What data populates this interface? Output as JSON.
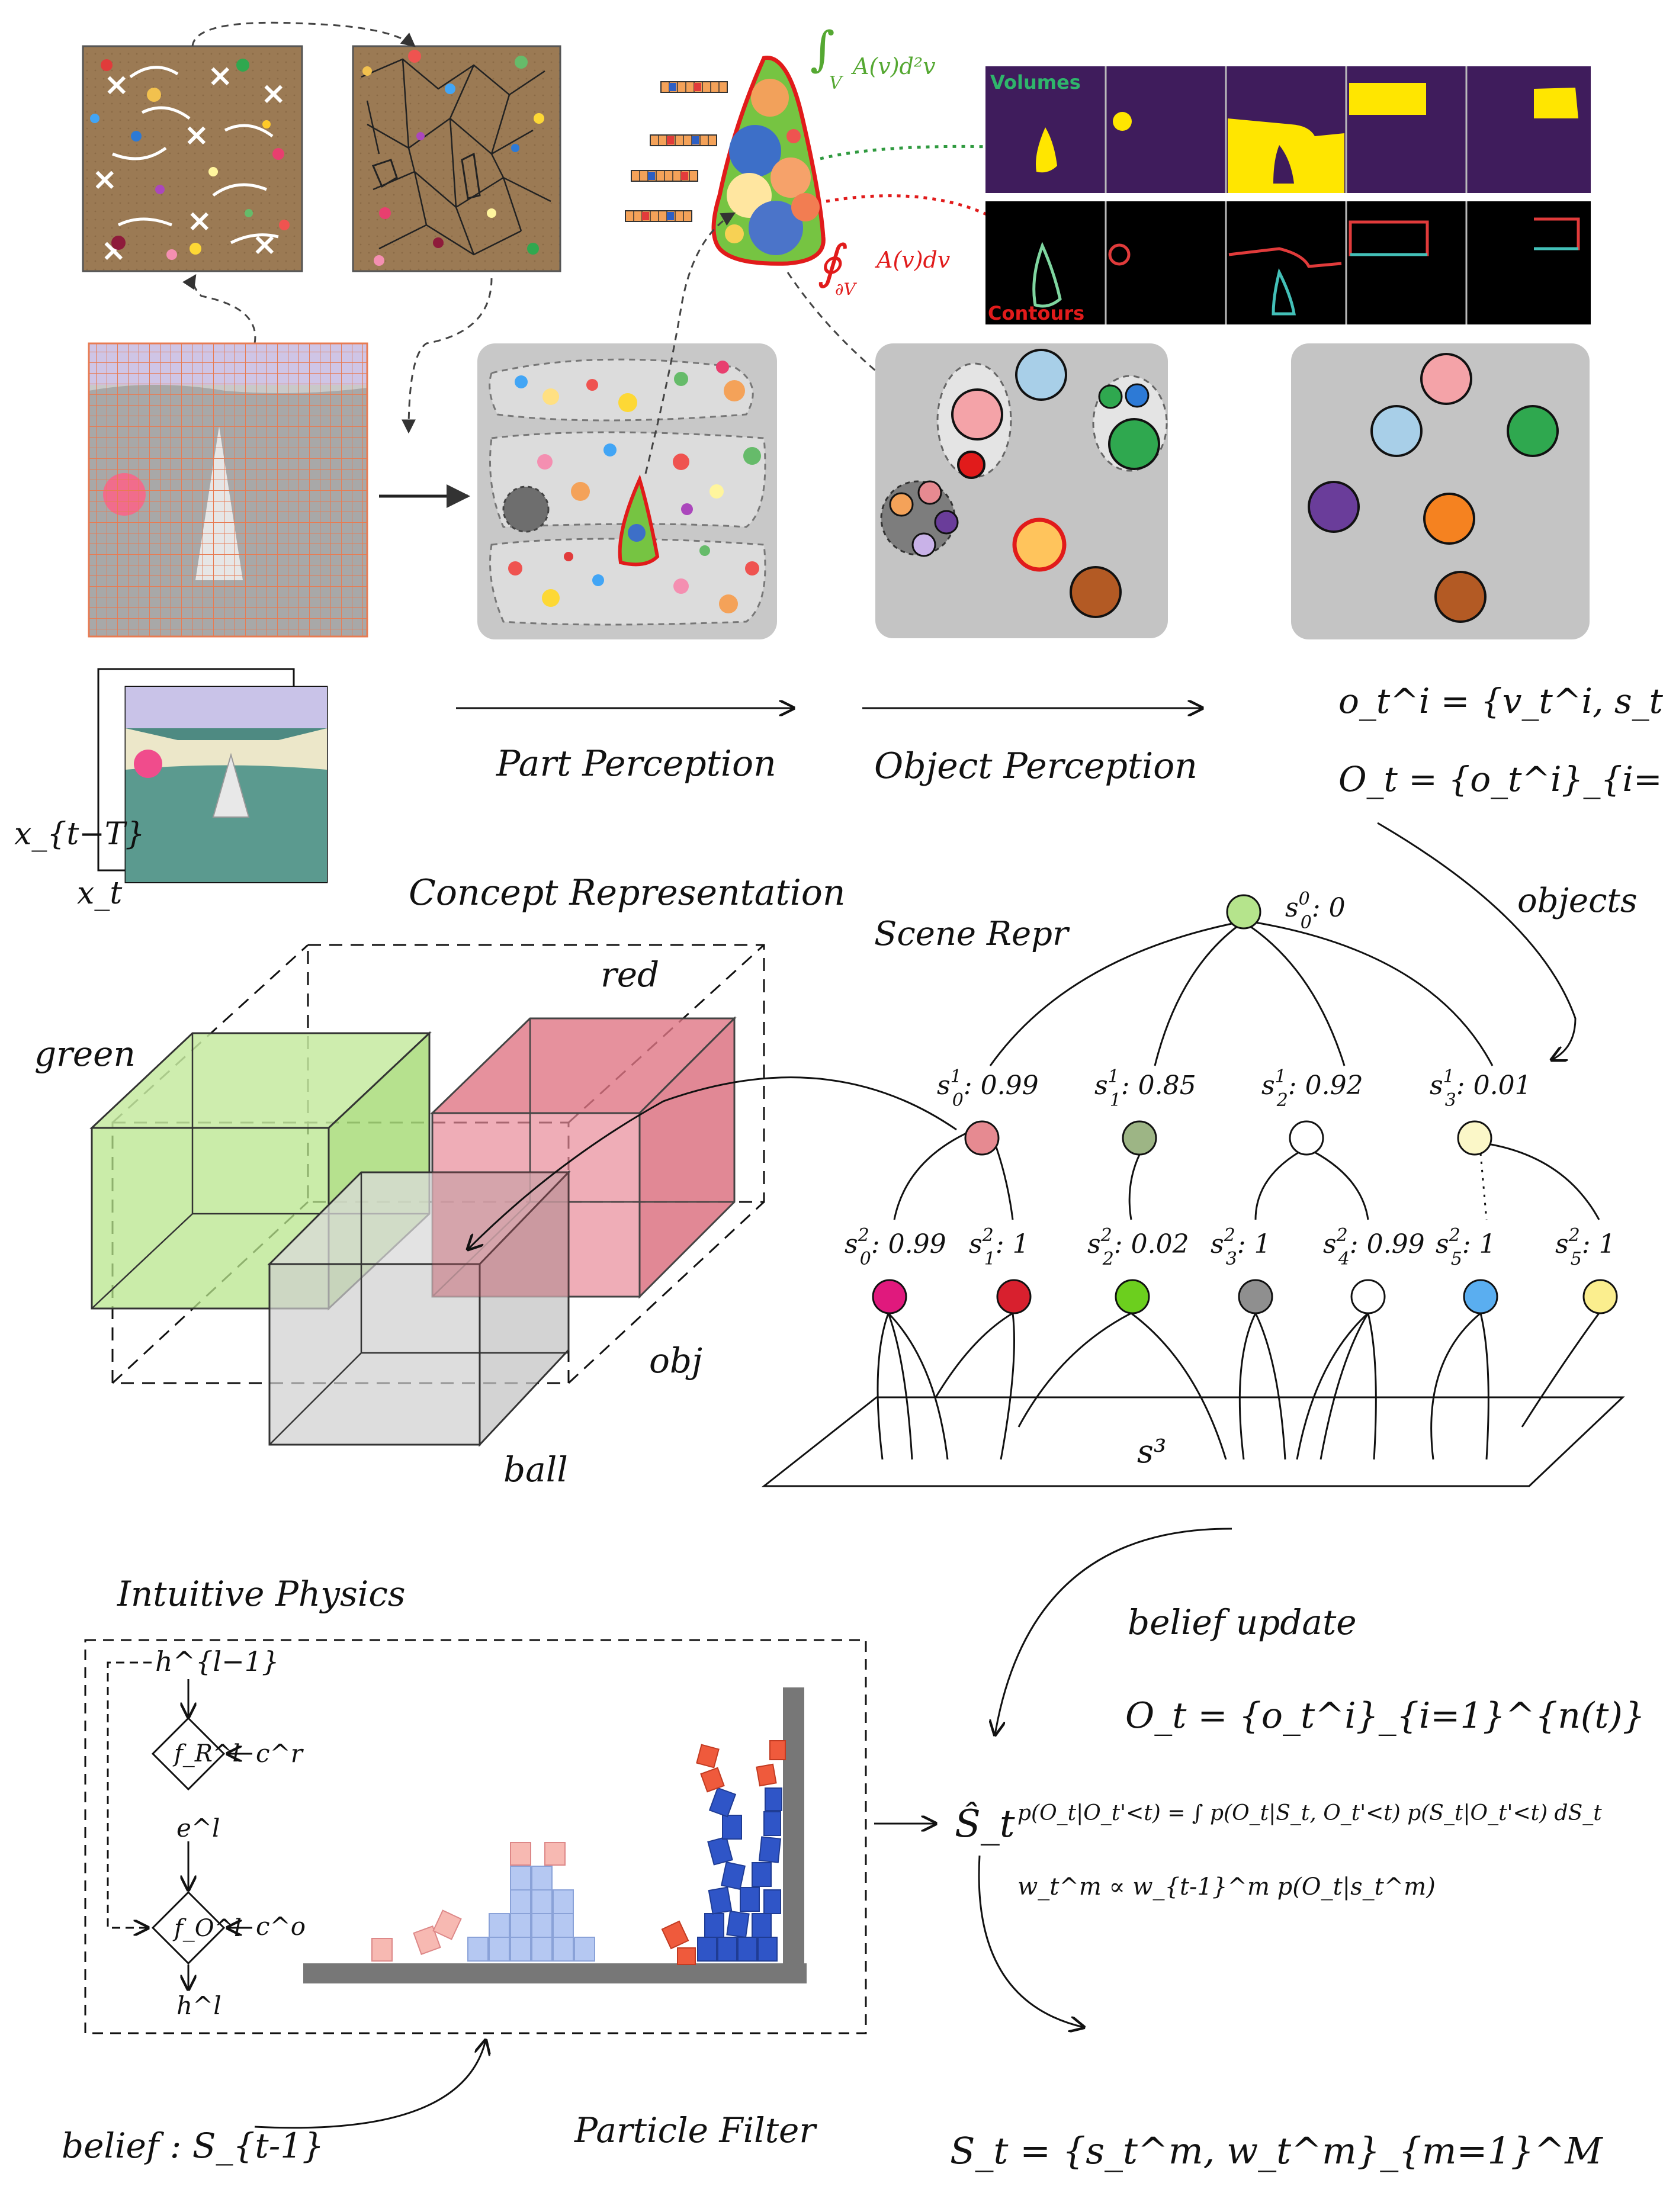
{
  "labels": {
    "part_perception": "Part Perception",
    "object_perception": "Object Perception",
    "concept_representation": "Concept Representation",
    "scene_repr": "Scene Repr",
    "objects": "objects",
    "intuitive_physics": "Intuitive Physics",
    "belief_update": "belief update",
    "particle_filter": "Particle Filter",
    "volumes": "Volumes",
    "contours": "Contours"
  },
  "equations": {
    "volume_integral": "∫V A(v)d²v",
    "contour_integral": "∮∂V A(v)dv",
    "object_def": "o_t^i = {v_t^i, s_t^i}",
    "objects_set": "O_t = {o_t^i}_{i=1}^{n(t)}",
    "likelihood": "p(O_t|O_t'<t) = ∫ p(O_t|S_t, O_t'<t) p(S_t|O_t'<t) dS_t",
    "weight_update": "w_t^m ∝ w_{t-1}^m p(O_t|s_t^m)",
    "state_set": "S_t = {s_t^m, w_t^m}_{m=1}^M",
    "belief": "belief : S_{t-1}",
    "s_hat": "Ŝ_t",
    "frames_start": "x_{t−T}",
    "frames_end": "x_t",
    "s3": "s³"
  },
  "concepts": {
    "green": "green",
    "red": "red",
    "obj": "obj",
    "ball": "ball"
  },
  "tree": {
    "root": {
      "label": "s",
      "sup": "0",
      "sub": "0",
      "value": ": 0",
      "color": "#b5e48c"
    },
    "level1": [
      {
        "sup": "1",
        "sub": "0",
        "value": ": 0.99",
        "color": "#e68a91"
      },
      {
        "sup": "1",
        "sub": "1",
        "value": ": 0.85",
        "color": "#9db585"
      },
      {
        "sup": "1",
        "sub": "2",
        "value": ": 0.92",
        "color": "#ffffff"
      },
      {
        "sup": "1",
        "sub": "3",
        "value": ": 0.01",
        "color": "#fbf7c8"
      }
    ],
    "level2": [
      {
        "sup": "2",
        "sub": "0",
        "value": ": 0.99",
        "color": "#e0197d"
      },
      {
        "sup": "2",
        "sub": "1",
        "value": ": 1",
        "color": "#d8202e"
      },
      {
        "sup": "2",
        "sub": "2",
        "value": ": 0.02",
        "color": "#6ccf1e"
      },
      {
        "sup": "2",
        "sub": "3",
        "value": ": 1",
        "color": "#8f8f8f"
      },
      {
        "sup": "2",
        "sub": "4",
        "value": ": 0.99",
        "color": "#ffffff"
      },
      {
        "sup": "2",
        "sub": "5",
        "value": ": 1",
        "color": "#5aaef0"
      },
      {
        "sup": "2",
        "sub": "5",
        "value": ": 1",
        "color": "#fbee8e"
      }
    ]
  },
  "physics_net": {
    "h_prev": "h^{l−1}",
    "f_r": "f_R^l",
    "c_r": "c^r",
    "e": "e^l",
    "f_o": "f_O^l",
    "c_o": "c^o",
    "h": "h^l"
  },
  "colors": {
    "brown_panel": "#9b7a54",
    "gray_panel": "#c8c8c8",
    "volume_bg": "#3f1c5c",
    "volume_fg": "#ffe600",
    "red_outline": "#e11b1b",
    "green_cube": "#b8e68c",
    "red_cube": "#e07080",
    "gray_cube": "#cfcfcf"
  }
}
